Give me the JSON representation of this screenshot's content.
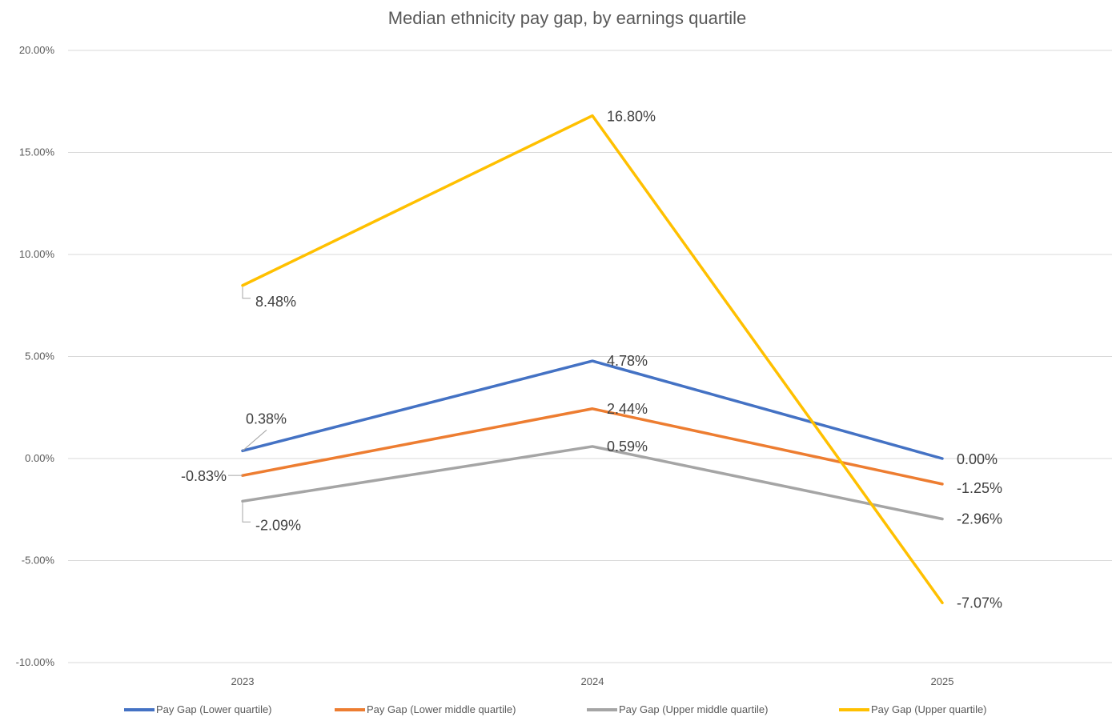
{
  "chart_data": {
    "type": "line",
    "title": "Median ethnicity pay gap, by earnings quartile",
    "xlabel": "",
    "ylabel": "",
    "categories": [
      "2023",
      "2024",
      "2025"
    ],
    "ylim": [
      -0.1,
      0.2
    ],
    "yticks": [
      "20.00%",
      "15.00%",
      "10.00%",
      "5.00%",
      "0.00%",
      "-5.00%",
      "-10.00%"
    ],
    "ytick_values": [
      0.2,
      0.15,
      0.1,
      0.05,
      0.0,
      -0.05,
      -0.1
    ],
    "grid": true,
    "legend_position": "bottom",
    "series": [
      {
        "name": "Pay Gap (Lower quartile)",
        "color": "#4472C4",
        "values": [
          0.0038,
          0.0478,
          0.0
        ],
        "labels": [
          "0.38%",
          "4.78%",
          "0.00%"
        ]
      },
      {
        "name": "Pay Gap (Lower middle quartile)",
        "color": "#ED7D31",
        "values": [
          -0.0083,
          0.0244,
          -0.0125
        ],
        "labels": [
          "-0.83%",
          "2.44%",
          "-1.25%"
        ]
      },
      {
        "name": "Pay Gap (Upper middle quartile)",
        "color": "#A5A5A5",
        "values": [
          -0.0209,
          0.0059,
          -0.0296
        ],
        "labels": [
          "-2.09%",
          "0.59%",
          "-2.96%"
        ]
      },
      {
        "name": "Pay Gap (Upper quartile)",
        "color": "#FFC000",
        "values": [
          0.0848,
          0.168,
          -0.0707
        ],
        "labels": [
          "8.48%",
          "16.80%",
          "-7.07%"
        ]
      }
    ]
  }
}
